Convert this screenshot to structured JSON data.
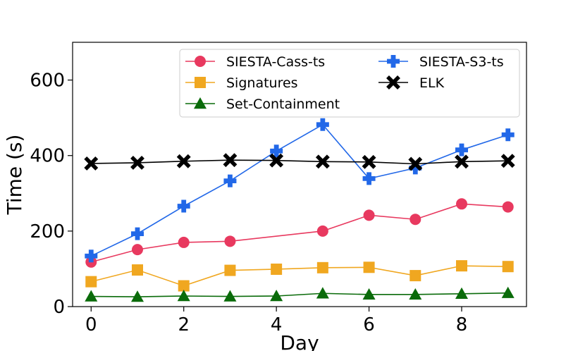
{
  "chart_data": {
    "type": "line",
    "title": "",
    "xlabel": "Day",
    "ylabel": "Time (s)",
    "xlim": [
      -0.4,
      9.4
    ],
    "ylim": [
      0,
      700
    ],
    "xticks": [
      0,
      2,
      4,
      6,
      8
    ],
    "yticks": [
      0,
      200,
      400,
      600
    ],
    "grid": false,
    "legend_position": "top-right",
    "x": [
      0,
      1,
      2,
      3,
      4,
      5,
      6,
      7,
      8,
      9
    ],
    "series": [
      {
        "name": "SIESTA-Cass-ts",
        "color": "#e8395f",
        "marker": "circle",
        "values": [
          118,
          151,
          170,
          173,
          null,
          200,
          242,
          231,
          272,
          264
        ],
        "x_override": [
          0,
          1,
          2,
          3,
          null,
          5,
          6,
          7,
          8,
          9
        ]
      },
      {
        "name": "Signatures",
        "color": "#f0a720",
        "marker": "square",
        "values": [
          66,
          97,
          55,
          96,
          99,
          103,
          104,
          82,
          108,
          106
        ]
      },
      {
        "name": "Set-Containment",
        "color": "#0a6b0a",
        "marker": "triangle",
        "values": [
          27,
          26,
          28,
          27,
          28,
          35,
          32,
          32,
          34,
          36
        ]
      },
      {
        "name": "SIESTA-S3-ts",
        "color": "#2268e8",
        "marker": "plus",
        "values": [
          134,
          193,
          266,
          333,
          412,
          482,
          339,
          367,
          415,
          455
        ]
      },
      {
        "name": "ELK",
        "color": "#000000",
        "marker": "x",
        "values": [
          379,
          381,
          385,
          388,
          387,
          384,
          383,
          378,
          384,
          386
        ]
      }
    ]
  }
}
